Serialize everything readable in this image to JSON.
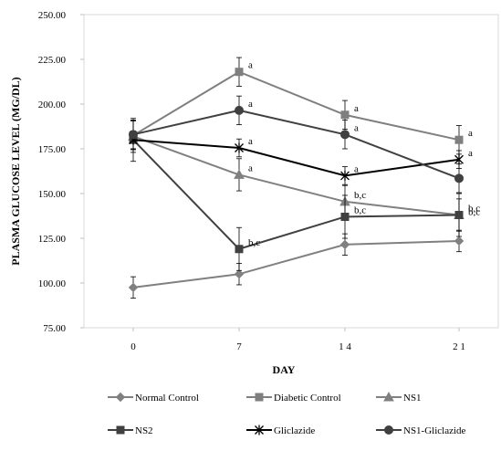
{
  "chart_data": {
    "type": "line",
    "xlabel": "DAY",
    "ylabel": "PLASMA GLUCOSE LEVEL (MG/DL)",
    "x": [
      0,
      7,
      14,
      21
    ],
    "x_tick_labels": [
      "0",
      "7",
      "1 4",
      "2 1"
    ],
    "ylim": [
      75,
      250
    ],
    "y_ticks": [
      75,
      100,
      125,
      150,
      175,
      200,
      225,
      250
    ],
    "y_tick_labels": [
      "75.00",
      "100.00",
      "125.00",
      "150.00",
      "175.00",
      "200.00",
      "225.00",
      "250.00"
    ],
    "grid": false,
    "legend_position": "bottom",
    "series": [
      {
        "name": "Normal Control",
        "marker": "diamond",
        "color": "#808080",
        "values": [
          97.5,
          105,
          121.5,
          123.5
        ],
        "errors": [
          6,
          6,
          6,
          6
        ]
      },
      {
        "name": "Diabetic Control",
        "marker": "square",
        "color": "#7f7f7f",
        "values": [
          182.5,
          218,
          194,
          180
        ],
        "errors": [
          8,
          8,
          8,
          8
        ]
      },
      {
        "name": "NS1",
        "marker": "triangle",
        "color": "#808080",
        "values": [
          182,
          160.5,
          145.5,
          138
        ],
        "errors": [
          9,
          9,
          9,
          9
        ]
      },
      {
        "name": "NS2",
        "marker": "square",
        "color": "#404040",
        "values": [
          180,
          119,
          137,
          138
        ],
        "errors": [
          12,
          12,
          12,
          12
        ]
      },
      {
        "name": "Gliclazide",
        "marker": "star",
        "color": "#000000",
        "values": [
          180,
          175.5,
          160,
          169
        ],
        "errors": [
          5,
          5,
          5,
          5
        ]
      },
      {
        "name": "NS1-Gliclazide",
        "marker": "circle",
        "color": "#404040",
        "values": [
          183,
          196.5,
          183,
          158.5
        ],
        "errors": [
          8,
          8,
          8,
          8
        ]
      }
    ],
    "annotations": [
      {
        "x": 7,
        "y": 218,
        "text": "a"
      },
      {
        "x": 7,
        "y": 196.5,
        "text": "a"
      },
      {
        "x": 7,
        "y": 175.5,
        "text": "a"
      },
      {
        "x": 7,
        "y": 160.5,
        "text": "a"
      },
      {
        "x": 7,
        "y": 119,
        "text": "b,c"
      },
      {
        "x": 14,
        "y": 194,
        "text": "a"
      },
      {
        "x": 14,
        "y": 183,
        "text": "a"
      },
      {
        "x": 14,
        "y": 160,
        "text": "a"
      },
      {
        "x": 14,
        "y": 145.5,
        "text": "b,c"
      },
      {
        "x": 14,
        "y": 137,
        "text": "b,c"
      },
      {
        "x": 21,
        "y": 180,
        "text": "a"
      },
      {
        "x": 21,
        "y": 169,
        "text": "a"
      },
      {
        "x": 21,
        "y": 138,
        "text": "b,c"
      },
      {
        "x": 21,
        "y": 136,
        "text": "b,c"
      }
    ]
  }
}
